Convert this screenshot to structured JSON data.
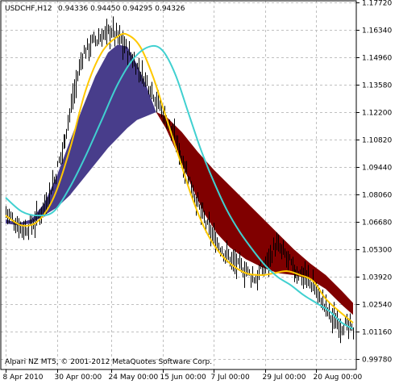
{
  "header": {
    "symbol_timeframe": "USDCHF,H12",
    "ohlc": "0.94336 0.94450 0.94295 0.94326"
  },
  "footer": {
    "copyright": "Alpari NZ MT5, © 2001-2012 MetaQuotes Software Corp."
  },
  "colors": {
    "background": "#ffffff",
    "grid": "#c0c0c0",
    "bars": "#000000",
    "fast_ma": "#ffc800",
    "slow_ma": "#40d0d0",
    "cloud_up": "#483d8b",
    "cloud_down": "#800000"
  },
  "chart_data": {
    "type": "line",
    "price_ticks": [
      1.1772,
      1.1634,
      1.1496,
      1.1358,
      1.122,
      1.1082,
      1.0944,
      1.0806,
      1.0668,
      1.053,
      1.0392,
      1.0254,
      1.0116,
      0.9978
    ],
    "price_tick_labels": [
      "1.17720",
      "1.16340",
      "1.14960",
      "1.13580",
      "1.12200",
      "1.10820",
      "1.09440",
      "1.08060",
      "1.06680",
      "1.05300",
      "1.03920",
      "1.02540",
      "1.01160",
      "0.99780"
    ],
    "ylim": [
      0.9925,
      1.178
    ],
    "date_labels": [
      "8 Apr 2010",
      "30 Apr 00:00",
      "24 May 00:00",
      "15 Jun 00:00",
      "7 Jul 00:00",
      "29 Jul 00:00",
      "20 Aug 00:00"
    ],
    "date_label_index": [
      0,
      32,
      66,
      98,
      130,
      162,
      194
    ],
    "bar_count": 218,
    "close_points": [
      [
        0,
        1.072
      ],
      [
        6,
        1.066
      ],
      [
        12,
        1.063
      ],
      [
        18,
        1.067
      ],
      [
        24,
        1.075
      ],
      [
        30,
        1.088
      ],
      [
        36,
        1.106
      ],
      [
        42,
        1.129
      ],
      [
        48,
        1.151
      ],
      [
        54,
        1.157
      ],
      [
        60,
        1.16
      ],
      [
        66,
        1.163
      ],
      [
        72,
        1.158
      ],
      [
        78,
        1.15
      ],
      [
        84,
        1.142
      ],
      [
        90,
        1.135
      ],
      [
        96,
        1.125
      ],
      [
        102,
        1.115
      ],
      [
        108,
        1.103
      ],
      [
        114,
        1.09
      ],
      [
        120,
        1.075
      ],
      [
        126,
        1.064
      ],
      [
        132,
        1.056
      ],
      [
        138,
        1.05
      ],
      [
        144,
        1.045
      ],
      [
        150,
        1.042
      ],
      [
        156,
        1.038
      ],
      [
        162,
        1.045
      ],
      [
        168,
        1.055
      ],
      [
        174,
        1.05
      ],
      [
        180,
        1.042
      ],
      [
        186,
        1.04
      ],
      [
        192,
        1.035
      ],
      [
        198,
        1.026
      ],
      [
        204,
        1.018
      ],
      [
        210,
        1.015
      ],
      [
        217,
        1.012
      ]
    ],
    "series": [
      {
        "key": "fast",
        "points": [
          [
            0,
            1.07
          ],
          [
            10,
            1.065
          ],
          [
            20,
            1.067
          ],
          [
            30,
            1.079
          ],
          [
            40,
            1.103
          ],
          [
            50,
            1.133
          ],
          [
            60,
            1.152
          ],
          [
            70,
            1.16
          ],
          [
            76,
            1.161
          ],
          [
            84,
            1.155
          ],
          [
            92,
            1.14
          ],
          [
            100,
            1.12
          ],
          [
            108,
            1.1
          ],
          [
            116,
            1.08
          ],
          [
            124,
            1.064
          ],
          [
            132,
            1.053
          ],
          [
            140,
            1.046
          ],
          [
            150,
            1.041
          ],
          [
            160,
            1.04
          ],
          [
            168,
            1.041
          ],
          [
            176,
            1.042
          ],
          [
            184,
            1.04
          ],
          [
            192,
            1.037
          ],
          [
            200,
            1.028
          ],
          [
            208,
            1.022
          ],
          [
            217,
            1.016
          ]
        ]
      },
      {
        "key": "slow",
        "points": [
          [
            0,
            1.079
          ],
          [
            10,
            1.072
          ],
          [
            20,
            1.07
          ],
          [
            30,
            1.072
          ],
          [
            40,
            1.084
          ],
          [
            50,
            1.1
          ],
          [
            60,
            1.118
          ],
          [
            70,
            1.136
          ],
          [
            80,
            1.149
          ],
          [
            90,
            1.155
          ],
          [
            98,
            1.153
          ],
          [
            106,
            1.141
          ],
          [
            114,
            1.122
          ],
          [
            122,
            1.103
          ],
          [
            130,
            1.087
          ],
          [
            138,
            1.073
          ],
          [
            146,
            1.062
          ],
          [
            154,
            1.053
          ],
          [
            162,
            1.045
          ],
          [
            170,
            1.039
          ],
          [
            178,
            1.035
          ],
          [
            186,
            1.03
          ],
          [
            194,
            1.026
          ],
          [
            202,
            1.022
          ],
          [
            210,
            1.016
          ],
          [
            217,
            1.013
          ]
        ]
      }
    ],
    "cloud_bands": [
      {
        "key": "up",
        "upper": [
          [
            0,
            1.068
          ],
          [
            8,
            1.066
          ],
          [
            16,
            1.068
          ],
          [
            24,
            1.076
          ],
          [
            32,
            1.09
          ],
          [
            40,
            1.107
          ],
          [
            48,
            1.124
          ],
          [
            56,
            1.14
          ],
          [
            64,
            1.152
          ],
          [
            70,
            1.156
          ],
          [
            76,
            1.155
          ],
          [
            82,
            1.146
          ],
          [
            88,
            1.135
          ],
          [
            94,
            1.122
          ]
        ],
        "lower": [
          [
            0,
            1.066
          ],
          [
            8,
            1.065
          ],
          [
            16,
            1.066
          ],
          [
            24,
            1.07
          ],
          [
            32,
            1.074
          ],
          [
            40,
            1.08
          ],
          [
            48,
            1.088
          ],
          [
            56,
            1.096
          ],
          [
            64,
            1.104
          ],
          [
            70,
            1.109
          ],
          [
            76,
            1.114
          ],
          [
            82,
            1.118
          ],
          [
            88,
            1.12
          ],
          [
            94,
            1.122
          ]
        ]
      },
      {
        "key": "down",
        "upper": [
          [
            94,
            1.122
          ],
          [
            100,
            1.12
          ],
          [
            110,
            1.112
          ],
          [
            120,
            1.102
          ],
          [
            130,
            1.093
          ],
          [
            140,
            1.085
          ],
          [
            150,
            1.077
          ],
          [
            160,
            1.069
          ],
          [
            170,
            1.061
          ],
          [
            180,
            1.053
          ],
          [
            190,
            1.046
          ],
          [
            200,
            1.04
          ],
          [
            210,
            1.032
          ],
          [
            217,
            1.026
          ]
        ],
        "lower": [
          [
            94,
            1.122
          ],
          [
            100,
            1.114
          ],
          [
            108,
            1.1
          ],
          [
            116,
            1.085
          ],
          [
            124,
            1.071
          ],
          [
            132,
            1.061
          ],
          [
            140,
            1.054
          ],
          [
            150,
            1.048
          ],
          [
            160,
            1.044
          ],
          [
            170,
            1.041
          ],
          [
            180,
            1.04
          ],
          [
            190,
            1.038
          ],
          [
            200,
            1.033
          ],
          [
            210,
            1.025
          ],
          [
            217,
            1.02
          ]
        ]
      }
    ]
  }
}
